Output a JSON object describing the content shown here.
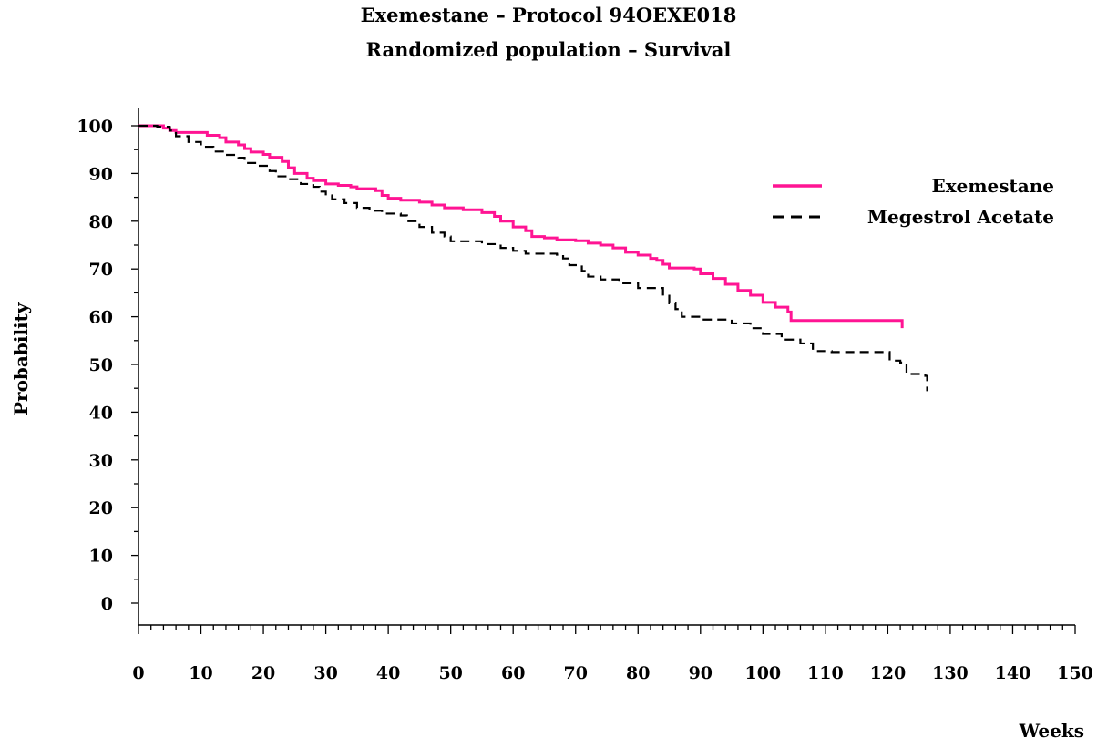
{
  "chart_data": {
    "type": "line",
    "title": "Exemestane   – Protocol 94OEXE018",
    "subtitle": "Randomized population  –  Survival",
    "xlabel": "Weeks",
    "ylabel": "Probability",
    "xlim": [
      0,
      150
    ],
    "ylim": [
      0,
      100
    ],
    "xticks": [
      0,
      10,
      20,
      30,
      40,
      50,
      60,
      70,
      80,
      90,
      100,
      110,
      120,
      130,
      140,
      150
    ],
    "yticks": [
      0,
      10,
      20,
      30,
      40,
      50,
      60,
      70,
      80,
      90,
      100
    ],
    "grid": false,
    "legend_position": "top-right",
    "series": [
      {
        "name": "Exemestane",
        "color": "#ff1493",
        "style": "solid",
        "step": true,
        "points": [
          [
            0,
            100
          ],
          [
            3,
            100
          ],
          [
            4,
            99.5
          ],
          [
            5,
            99
          ],
          [
            6,
            98.6
          ],
          [
            10,
            98.6
          ],
          [
            11,
            98
          ],
          [
            13,
            97.5
          ],
          [
            14,
            96.6
          ],
          [
            16,
            96
          ],
          [
            17,
            95.2
          ],
          [
            18,
            94.5
          ],
          [
            20,
            94
          ],
          [
            21,
            93.4
          ],
          [
            23,
            92.5
          ],
          [
            24,
            91.2
          ],
          [
            25,
            90
          ],
          [
            27,
            89
          ],
          [
            28,
            88.5
          ],
          [
            30,
            87.8
          ],
          [
            32,
            87.5
          ],
          [
            34,
            87.2
          ],
          [
            35,
            86.8
          ],
          [
            38,
            86.4
          ],
          [
            39,
            85.4
          ],
          [
            40,
            84.8
          ],
          [
            42,
            84.4
          ],
          [
            45,
            84
          ],
          [
            47,
            83.4
          ],
          [
            49,
            82.8
          ],
          [
            52,
            82.4
          ],
          [
            55,
            81.8
          ],
          [
            57,
            81
          ],
          [
            58,
            80
          ],
          [
            60,
            78.8
          ],
          [
            62,
            78
          ],
          [
            63,
            76.8
          ],
          [
            65,
            76.5
          ],
          [
            67,
            76.1
          ],
          [
            70,
            75.9
          ],
          [
            72,
            75.4
          ],
          [
            74,
            75
          ],
          [
            76,
            74.4
          ],
          [
            78,
            73.5
          ],
          [
            80,
            72.9
          ],
          [
            82,
            72.2
          ],
          [
            83,
            71.8
          ],
          [
            84,
            71
          ],
          [
            85,
            70.2
          ],
          [
            89,
            70
          ],
          [
            90,
            69
          ],
          [
            92,
            68
          ],
          [
            94,
            66.8
          ],
          [
            96,
            65.5
          ],
          [
            98,
            64.5
          ],
          [
            100,
            63
          ],
          [
            102,
            62
          ],
          [
            104,
            61
          ],
          [
            104.5,
            59.2
          ],
          [
            122,
            59.2
          ],
          [
            122.3,
            57.6
          ]
        ]
      },
      {
        "name": "Megestrol Acetate",
        "color": "#000000",
        "style": "dashed",
        "step": true,
        "points": [
          [
            0,
            100
          ],
          [
            3,
            99.8
          ],
          [
            5,
            99
          ],
          [
            6,
            97.8
          ],
          [
            8,
            96.6
          ],
          [
            10,
            95.6
          ],
          [
            12,
            94.6
          ],
          [
            14,
            93.9
          ],
          [
            16,
            93.3
          ],
          [
            17,
            92.2
          ],
          [
            19,
            91.6
          ],
          [
            21,
            90.5
          ],
          [
            22,
            89.4
          ],
          [
            24,
            88.8
          ],
          [
            26,
            87.8
          ],
          [
            28,
            87.2
          ],
          [
            29,
            86.2
          ],
          [
            30,
            85.4
          ],
          [
            31,
            84.6
          ],
          [
            33,
            83.8
          ],
          [
            35,
            82.8
          ],
          [
            37,
            82.2
          ],
          [
            39,
            81.6
          ],
          [
            42,
            81.2
          ],
          [
            43,
            80
          ],
          [
            45,
            78.8
          ],
          [
            47,
            77.6
          ],
          [
            49,
            76.8
          ],
          [
            50,
            75.8
          ],
          [
            55,
            75.2
          ],
          [
            58,
            74.4
          ],
          [
            60,
            73.8
          ],
          [
            62,
            73.2
          ],
          [
            67,
            73
          ],
          [
            68,
            72.2
          ],
          [
            69,
            70.8
          ],
          [
            71,
            69.6
          ],
          [
            72,
            68.4
          ],
          [
            74,
            67.8
          ],
          [
            77,
            67
          ],
          [
            80,
            66
          ],
          [
            84,
            64.4
          ],
          [
            85,
            62.8
          ],
          [
            86,
            61.6
          ],
          [
            87,
            60
          ],
          [
            90,
            59.4
          ],
          [
            95,
            58.6
          ],
          [
            98,
            57.6
          ],
          [
            100,
            56.4
          ],
          [
            103,
            55.2
          ],
          [
            106,
            54.4
          ],
          [
            108,
            52.8
          ],
          [
            111,
            52.6
          ],
          [
            115,
            52.6
          ],
          [
            120,
            52.6
          ],
          [
            120.3,
            50.8
          ],
          [
            122,
            50.4
          ],
          [
            123,
            48
          ],
          [
            126,
            47.6
          ],
          [
            126.3,
            44.4
          ]
        ]
      }
    ]
  }
}
